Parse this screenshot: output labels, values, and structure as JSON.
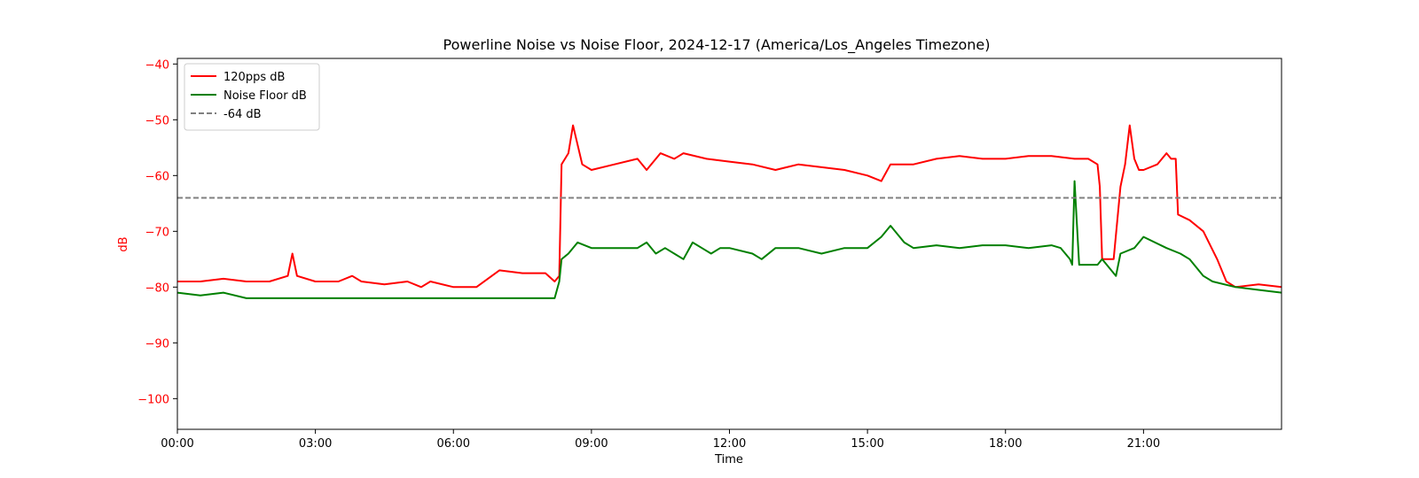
{
  "chart_data": {
    "type": "line",
    "title": "Powerline Noise vs Noise Floor, 2024-12-17 (America/Los_Angeles Timezone)",
    "xlabel": "Time",
    "ylabel": "dB",
    "x_unit": "hours since 00:00 local time",
    "xlim": [
      0,
      24
    ],
    "ylim": [
      -105.5,
      -39
    ],
    "x_ticks": [
      0,
      3,
      6,
      9,
      12,
      15,
      18,
      21
    ],
    "x_tick_labels": [
      "00:00",
      "03:00",
      "06:00",
      "09:00",
      "12:00",
      "15:00",
      "18:00",
      "21:00"
    ],
    "y_ticks": [
      -40,
      -50,
      -60,
      -70,
      -80,
      -90,
      -100
    ],
    "y_tick_labels": [
      "−40",
      "−50",
      "−60",
      "−70",
      "−80",
      "−90",
      "−100"
    ],
    "y_tick_color": "#ff0000",
    "grid": false,
    "legend_position": "top-left",
    "series": [
      {
        "name": "120pps dB",
        "color": "#ff0000",
        "style": "solid",
        "x": [
          0,
          0.5,
          1.0,
          1.5,
          2.0,
          2.4,
          2.5,
          2.6,
          3.0,
          3.5,
          3.8,
          4.0,
          4.5,
          5.0,
          5.3,
          5.5,
          6.0,
          6.3,
          6.5,
          7.0,
          7.5,
          8.0,
          8.2,
          8.3,
          8.35,
          8.5,
          8.6,
          8.8,
          9.0,
          9.5,
          10.0,
          10.2,
          10.5,
          10.8,
          11.0,
          11.5,
          12.0,
          12.5,
          13.0,
          13.5,
          14.0,
          14.5,
          15.0,
          15.3,
          15.5,
          16.0,
          16.5,
          17.0,
          17.5,
          18.0,
          18.5,
          19.0,
          19.5,
          19.8,
          20.0,
          20.05,
          20.1,
          20.2,
          20.35,
          20.5,
          20.6,
          20.7,
          20.8,
          20.9,
          21.0,
          21.3,
          21.5,
          21.6,
          21.7,
          21.75,
          22.0,
          22.3,
          22.6,
          22.8,
          23.0,
          23.5,
          24.0
        ],
        "values": [
          -79,
          -79,
          -78.5,
          -79,
          -79,
          -78,
          -74,
          -78,
          -79,
          -79,
          -78,
          -79,
          -79.5,
          -79,
          -80,
          -79,
          -80,
          -80,
          -80,
          -77,
          -77.5,
          -77.5,
          -79,
          -78,
          -58,
          -56,
          -51,
          -58,
          -59,
          -58,
          -57,
          -59,
          -56,
          -57,
          -56,
          -57,
          -57.5,
          -58,
          -59,
          -58,
          -58.5,
          -59,
          -60,
          -61,
          -58,
          -58,
          -57,
          -56.5,
          -57,
          -57,
          -56.5,
          -56.5,
          -57,
          -57,
          -58,
          -62,
          -75,
          -75,
          -75,
          -62,
          -58,
          -51,
          -57,
          -59,
          -59,
          -58,
          -56,
          -57,
          -57,
          -67,
          -68,
          -70,
          -75,
          -79,
          -80,
          -79.5,
          -80
        ]
      },
      {
        "name": "Noise Floor dB",
        "color": "#008000",
        "style": "solid",
        "x": [
          0,
          0.5,
          1.0,
          1.5,
          2.0,
          2.5,
          3.0,
          3.5,
          4.0,
          4.5,
          5.0,
          5.5,
          6.0,
          6.5,
          7.0,
          7.5,
          8.0,
          8.2,
          8.3,
          8.35,
          8.5,
          8.7,
          9.0,
          9.5,
          10.0,
          10.2,
          10.4,
          10.6,
          11.0,
          11.2,
          11.4,
          11.6,
          11.8,
          12.0,
          12.5,
          12.7,
          13.0,
          13.5,
          14.0,
          14.5,
          15.0,
          15.3,
          15.5,
          15.8,
          16.0,
          16.5,
          17.0,
          17.5,
          18.0,
          18.5,
          19.0,
          19.2,
          19.4,
          19.45,
          19.5,
          19.6,
          20.0,
          20.1,
          20.4,
          20.5,
          20.8,
          21.0,
          21.5,
          21.8,
          22.0,
          22.3,
          22.5,
          23.0,
          23.5,
          24.0
        ],
        "values": [
          -81,
          -81.5,
          -81,
          -82,
          -82,
          -82,
          -82,
          -82,
          -82,
          -82,
          -82,
          -82,
          -82,
          -82,
          -82,
          -82,
          -82,
          -82,
          -79,
          -75,
          -74,
          -72,
          -73,
          -73,
          -73,
          -72,
          -74,
          -73,
          -75,
          -72,
          -73,
          -74,
          -73,
          -73,
          -74,
          -75,
          -73,
          -73,
          -74,
          -73,
          -73,
          -71,
          -69,
          -72,
          -73,
          -72.5,
          -73,
          -72.5,
          -72.5,
          -73,
          -72.5,
          -73,
          -75,
          -76,
          -61,
          -76,
          -76,
          -75,
          -78,
          -74,
          -73,
          -71,
          -73,
          -74,
          -75,
          -78,
          -79,
          -80,
          -80.5,
          -81
        ]
      },
      {
        "name": "-64 dB",
        "color": "#808080",
        "style": "dashed",
        "x": [
          0,
          24
        ],
        "values": [
          -64,
          -64
        ]
      }
    ]
  }
}
